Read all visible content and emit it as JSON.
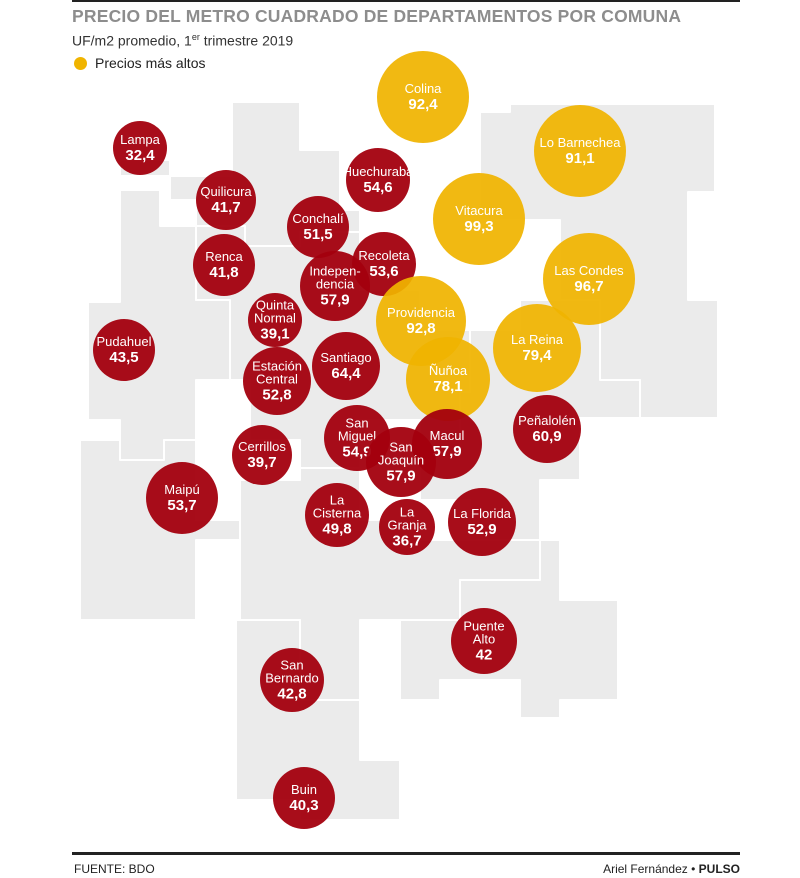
{
  "header": {
    "title": "PRECIO DEL METRO CUADRADO DE DEPARTAMENTOS POR COMUNA",
    "subtitle_main": "UF/m2 promedio, 1",
    "subtitle_sup": "er",
    "subtitle_tail": " trimestre 2019"
  },
  "legend": {
    "label": "Precios más altos",
    "color": "#f0b400"
  },
  "colors": {
    "high": "#f0b400",
    "normal": "#a3000e",
    "map_fill": "#ebebeb",
    "map_stroke": "#ffffff"
  },
  "communes": [
    {
      "lines": [
        "Colina"
      ],
      "value": "92,4",
      "high": true
    },
    {
      "lines": [
        "Lampa"
      ],
      "value": "32,4",
      "high": false
    },
    {
      "lines": [
        "Lo Barnechea"
      ],
      "value": "91,1",
      "high": true
    },
    {
      "lines": [
        "Huechuraba"
      ],
      "value": "54,6",
      "high": false
    },
    {
      "lines": [
        "Quilicura"
      ],
      "value": "41,7",
      "high": false
    },
    {
      "lines": [
        "Vitacura"
      ],
      "value": "99,3",
      "high": true
    },
    {
      "lines": [
        "Conchalí"
      ],
      "value": "51,5",
      "high": false
    },
    {
      "lines": [
        "Renca"
      ],
      "value": "41,8",
      "high": false
    },
    {
      "lines": [
        "Recoleta"
      ],
      "value": "53,6",
      "high": false
    },
    {
      "lines": [
        "Las Condes"
      ],
      "value": "96,7",
      "high": true
    },
    {
      "lines": [
        "Indepen-",
        "dencia"
      ],
      "value": "57,9",
      "high": false
    },
    {
      "lines": [
        "Quinta",
        "Normal"
      ],
      "value": "39,1",
      "high": false
    },
    {
      "lines": [
        "Providencia"
      ],
      "value": "92,8",
      "high": true
    },
    {
      "lines": [
        "La Reina"
      ],
      "value": "79,4",
      "high": true
    },
    {
      "lines": [
        "Pudahuel"
      ],
      "value": "43,5",
      "high": false
    },
    {
      "lines": [
        "Santiago"
      ],
      "value": "64,4",
      "high": false
    },
    {
      "lines": [
        "Estación",
        "Central"
      ],
      "value": "52,8",
      "high": false
    },
    {
      "lines": [
        "Ñuñoa"
      ],
      "value": "78,1",
      "high": true
    },
    {
      "lines": [
        "Peñalolén"
      ],
      "value": "60,9",
      "high": false
    },
    {
      "lines": [
        "San",
        "Miguel"
      ],
      "value": "54,9",
      "high": false
    },
    {
      "lines": [
        "Cerrillos"
      ],
      "value": "39,7",
      "high": false
    },
    {
      "lines": [
        "Macul"
      ],
      "value": "57,9",
      "high": false
    },
    {
      "lines": [
        "San",
        "Joaquín"
      ],
      "value": "57,9",
      "high": false
    },
    {
      "lines": [
        "Maipú"
      ],
      "value": "53,7",
      "high": false
    },
    {
      "lines": [
        "La",
        "Cisterna"
      ],
      "value": "49,8",
      "high": false
    },
    {
      "lines": [
        "La",
        "Granja"
      ],
      "value": "36,7",
      "high": false
    },
    {
      "lines": [
        "La Florida"
      ],
      "value": "52,9",
      "high": false
    },
    {
      "lines": [
        "Puente",
        "Alto"
      ],
      "value": "42",
      "high": false
    },
    {
      "lines": [
        "San",
        "Bernardo"
      ],
      "value": "42,8",
      "high": false
    },
    {
      "lines": [
        "Buin"
      ],
      "value": "40,3",
      "high": false
    }
  ],
  "footer": {
    "source": "FUENTE: BDO",
    "author": "Ariel Fernández",
    "separator": " • ",
    "outlet": "PULSO"
  }
}
